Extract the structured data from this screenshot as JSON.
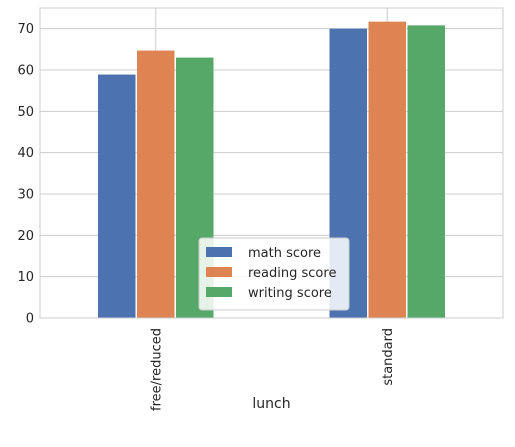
{
  "chart_data": {
    "type": "bar",
    "xlabel": "lunch",
    "ylabel": "",
    "categories": [
      "free/reduced",
      "standard"
    ],
    "series": [
      {
        "name": "math score",
        "values": [
          58.9,
          70.0
        ],
        "color": "#4c72b0"
      },
      {
        "name": "reading score",
        "values": [
          64.7,
          71.7
        ],
        "color": "#dd8452"
      },
      {
        "name": "writing score",
        "values": [
          63.0,
          70.8
        ],
        "color": "#55a868"
      }
    ],
    "ylim": [
      0,
      75
    ],
    "yticks": [
      0,
      10,
      20,
      30,
      40,
      50,
      60,
      70
    ],
    "grid": true,
    "legend_position": "bottom-center",
    "tick_rotation_x": 90
  }
}
